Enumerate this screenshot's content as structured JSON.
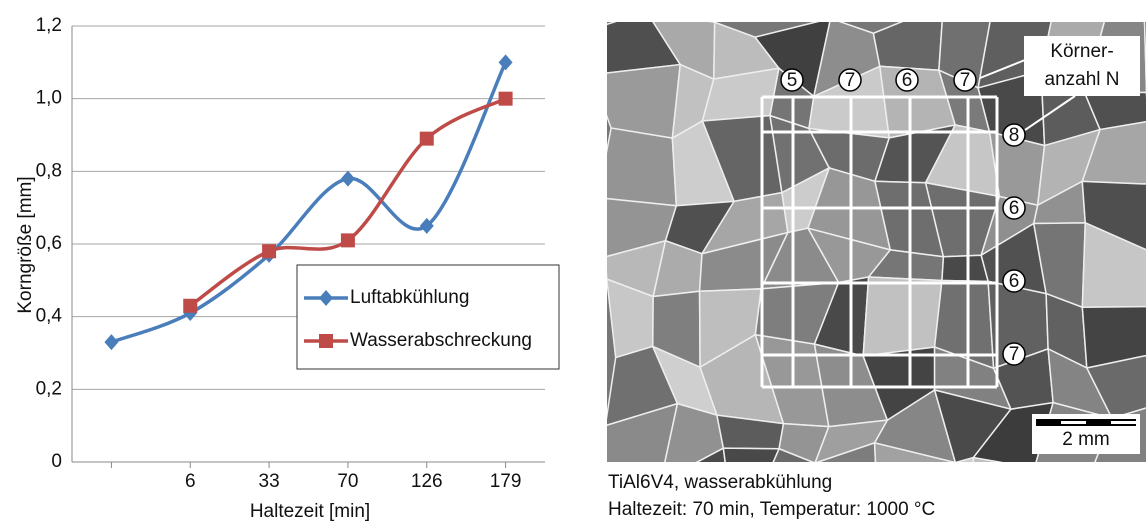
{
  "chart_data": {
    "type": "line",
    "y_label": "Korngröße [mm]",
    "x_label": "Haltezeit [min]",
    "categories": [
      null,
      "6",
      "33",
      "70",
      "126",
      "179"
    ],
    "series": [
      {
        "name": "Luftabkühlung",
        "color": "#4a7ebb",
        "marker": "diamond",
        "values": [
          0.33,
          0.41,
          0.57,
          0.78,
          0.65,
          1.1
        ]
      },
      {
        "name": "Wasserabschreckung",
        "color": "#be4b48",
        "marker": "square",
        "values": [
          null,
          0.43,
          0.58,
          0.61,
          0.89,
          1.0
        ]
      }
    ],
    "ylim": [
      0,
      1.2
    ],
    "yticks": [
      {
        "value": 0,
        "label": "0"
      },
      {
        "value": 0.2,
        "label": "0,2"
      },
      {
        "value": 0.4,
        "label": "0,4"
      },
      {
        "value": 0.6,
        "label": "0,6"
      },
      {
        "value": 0.8,
        "label": "0,8"
      },
      {
        "value": 1.0,
        "label": "1,0"
      },
      {
        "value": 1.2,
        "label": "1,2"
      }
    ],
    "grid": true
  },
  "image": {
    "column_counts": [
      "5",
      "7",
      "6",
      "7"
    ],
    "row_counts": [
      "8",
      "6",
      "6",
      "7"
    ],
    "label_lines": [
      "Körner-",
      "anzahl N"
    ],
    "scale_bar": "2 mm",
    "caption": [
      "TiAl6V4, wasserabkühlung",
      "Haltezeit: 70 min, Temperatur: 1000 °C"
    ]
  }
}
